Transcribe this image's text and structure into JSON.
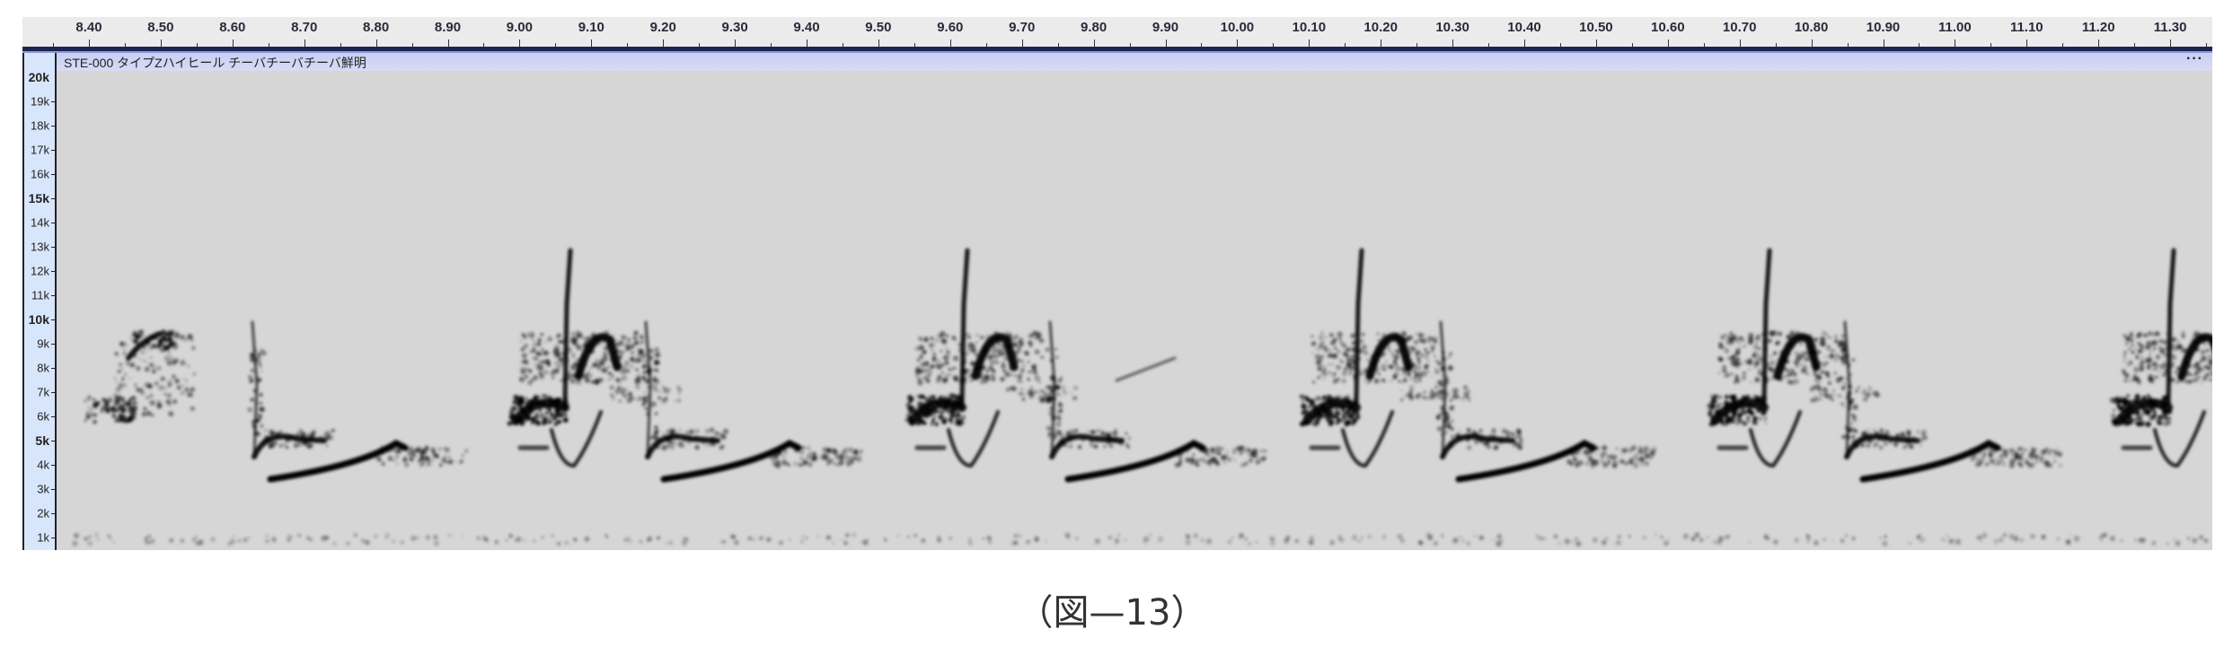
{
  "time_ruler": {
    "ticks": [
      "8.40",
      "8.50",
      "8.60",
      "8.70",
      "8.80",
      "8.90",
      "9.00",
      "9.10",
      "9.20",
      "9.30",
      "9.40",
      "9.50",
      "9.60",
      "9.70",
      "9.80",
      "9.90",
      "10.00",
      "10.10",
      "10.20",
      "10.30",
      "10.40",
      "10.50",
      "10.60",
      "10.70",
      "10.80",
      "10.90",
      "11.00",
      "11.10",
      "11.20",
      "11.30"
    ]
  },
  "track": {
    "title": "STE-000 タイプZハイヒール チーバチーバチーバ鮮明",
    "more_label": "···"
  },
  "frequency_axis": {
    "labels": [
      "20k",
      "19k",
      "18k",
      "17k",
      "16k",
      "15k",
      "14k",
      "13k",
      "12k",
      "11k",
      "10k",
      "9k",
      "8k",
      "7k",
      "6k",
      "5k",
      "4k",
      "3k",
      "2k",
      "1k"
    ],
    "bold_labels": [
      "20k",
      "15k",
      "10k",
      "5k"
    ]
  },
  "spectrogram": {
    "background_color": "#d6d6d6",
    "ink_color": "#000000"
  },
  "caption": "（図—13）"
}
